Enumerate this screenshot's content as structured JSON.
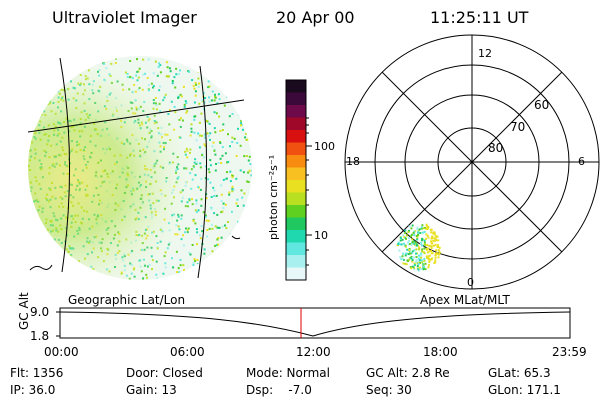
{
  "header": {
    "instrument": "Ultraviolet Imager",
    "date": "20 Apr 00",
    "time": "11:25:11 UT"
  },
  "colorbar": {
    "unit_label": "photon cm⁻²s⁻¹",
    "ticks": [
      "100",
      "10"
    ],
    "colors": [
      "#1a0a1e",
      "#3b0a3a",
      "#6e0a4a",
      "#a0082a",
      "#d81010",
      "#f05010",
      "#f88c10",
      "#f8c020",
      "#e8e020",
      "#b8e020",
      "#60d020",
      "#20c860",
      "#20d8b0",
      "#60e8e0",
      "#a8f0f0",
      "#e8f8f8"
    ]
  },
  "globe": {
    "caption": "Geographic Lat/Lon"
  },
  "polar": {
    "caption": "Apex MLat/MLT",
    "mlt_labels": {
      "top": "12",
      "left": "18",
      "right": "6",
      "bottom": "0"
    },
    "lat_labels": [
      "60",
      "70",
      "80"
    ]
  },
  "timeline": {
    "axis_label": "GC Alt",
    "y_ticks": [
      "9.0",
      "1.8"
    ],
    "x_ticks": [
      "00:00",
      "06:00",
      "12:00",
      "18:00",
      "23:59"
    ],
    "marker_color": "#e00000"
  },
  "info": {
    "row1": [
      "Flt: 1356",
      "Door: Closed",
      "Mode: Normal",
      "GC Alt: 2.8 Re",
      "GLat: 65.3"
    ],
    "row2": [
      "IP: 36.0",
      "Gain: 13",
      "Dsp:    -7.0",
      "Seq: 30",
      "GLon: 171.1"
    ]
  }
}
